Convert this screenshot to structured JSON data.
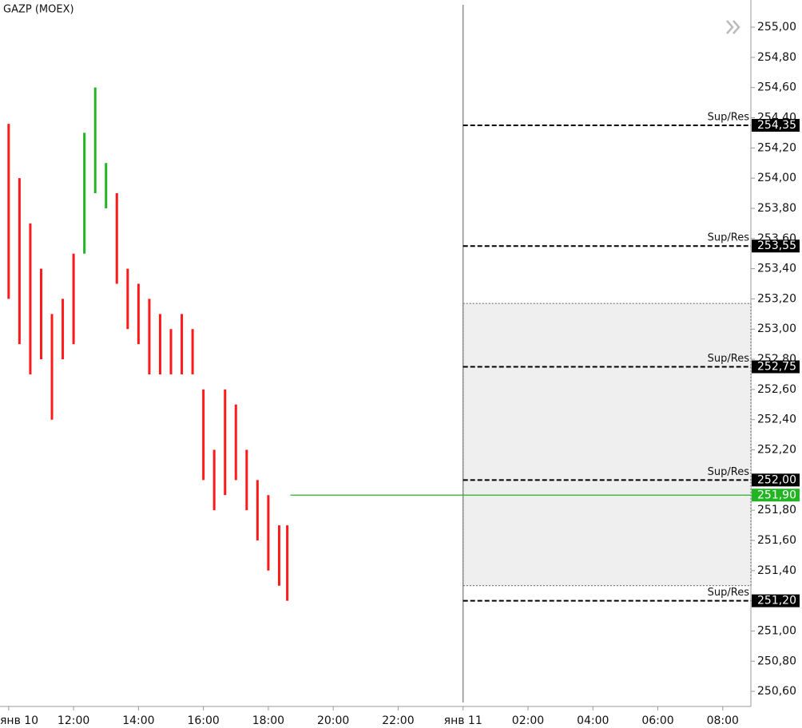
{
  "chart_data": {
    "type": "range-bar",
    "title": "GAZP (MOEX)",
    "x": [
      600,
      620,
      640,
      660,
      680,
      700,
      720,
      740,
      760,
      780,
      800,
      820,
      840,
      860,
      880,
      900,
      920,
      940,
      960,
      980,
      1000,
      1020,
      1040,
      1060,
      1080,
      1100,
      1115
    ],
    "high": [
      254.36,
      254.0,
      253.7,
      253.4,
      253.1,
      253.2,
      253.5,
      254.3,
      254.6,
      254.1,
      253.9,
      253.4,
      253.3,
      253.2,
      253.1,
      253.0,
      253.1,
      253.0,
      252.6,
      252.2,
      252.6,
      252.5,
      252.2,
      252.0,
      251.9,
      251.7,
      251.7
    ],
    "low": [
      253.2,
      252.9,
      252.7,
      252.8,
      252.4,
      252.8,
      252.9,
      253.5,
      253.9,
      253.8,
      253.3,
      253.0,
      252.9,
      252.7,
      252.7,
      252.7,
      252.7,
      252.7,
      252.0,
      251.8,
      251.9,
      252.0,
      251.8,
      251.6,
      251.4,
      251.3,
      251.2
    ],
    "colors": [
      "#ff1a1a",
      "#ff1a1a",
      "#ff1a1a",
      "#ff1a1a",
      "#ff1a1a",
      "#ff1a1a",
      "#ff1a1a",
      "#22b422",
      "#22b422",
      "#22b422",
      "#ff1a1a",
      "#ff1a1a",
      "#ff1a1a",
      "#ff1a1a",
      "#ff1a1a",
      "#ff1a1a",
      "#ff1a1a",
      "#ff1a1a",
      "#ff1a1a",
      "#ff1a1a",
      "#ff1a1a",
      "#ff1a1a",
      "#ff1a1a",
      "#ff1a1a",
      "#ff1a1a",
      "#ff1a1a",
      "#ff1a1a"
    ],
    "last_price": {
      "value": 251.9,
      "label": "251,90",
      "color": "#22b422"
    },
    "separator": 1440,
    "zone": [
      251.3,
      253.17
    ],
    "levels": [
      {
        "name": "Sup/Res",
        "value": 254.35,
        "label": "254,35"
      },
      {
        "name": "Sup/Res",
        "value": 253.55,
        "label": "253,55"
      },
      {
        "name": "Sup/Res",
        "value": 252.75,
        "label": "252,75"
      },
      {
        "name": "Sup/Res",
        "value": 252.0,
        "label": "252,00"
      },
      {
        "name": "Sup/Res",
        "value": 251.2,
        "label": "251,20"
      }
    ],
    "xlim": [
      584,
      1972
    ],
    "ylim": [
      250.5,
      255.18
    ],
    "xticks": [
      {
        "value": 600,
        "label": "янв 10"
      },
      {
        "value": 720,
        "label": "12:00"
      },
      {
        "value": 840,
        "label": "14:00"
      },
      {
        "value": 960,
        "label": "16:00"
      },
      {
        "value": 1080,
        "label": "18:00"
      },
      {
        "value": 1200,
        "label": "20:00"
      },
      {
        "value": 1320,
        "label": "22:00"
      },
      {
        "value": 1440,
        "label": "янв 11"
      },
      {
        "value": 1560,
        "label": "02:00"
      },
      {
        "value": 1680,
        "label": "04:00"
      },
      {
        "value": 1800,
        "label": "06:00"
      },
      {
        "value": 1920,
        "label": "08:00"
      }
    ],
    "yticks": [
      {
        "value": 250.6,
        "label": "250,60"
      },
      {
        "value": 250.8,
        "label": "250,80"
      },
      {
        "value": 251.0,
        "label": "251,00"
      },
      {
        "value": 251.2,
        "label": "251,20"
      },
      {
        "value": 251.4,
        "label": "251,40"
      },
      {
        "value": 251.6,
        "label": "251,60"
      },
      {
        "value": 251.8,
        "label": "251,80"
      },
      {
        "value": 252.0,
        "label": "252,00"
      },
      {
        "value": 252.2,
        "label": "252,20"
      },
      {
        "value": 252.4,
        "label": "252,40"
      },
      {
        "value": 252.6,
        "label": "252,60"
      },
      {
        "value": 252.8,
        "label": "252,80"
      },
      {
        "value": 253.0,
        "label": "253,00"
      },
      {
        "value": 253.2,
        "label": "253,20"
      },
      {
        "value": 253.4,
        "label": "253,40"
      },
      {
        "value": 253.6,
        "label": "253,60"
      },
      {
        "value": 253.8,
        "label": "253,80"
      },
      {
        "value": 254.0,
        "label": "254,00"
      },
      {
        "value": 254.2,
        "label": "254,20"
      },
      {
        "value": 254.4,
        "label": "254,40"
      },
      {
        "value": 254.6,
        "label": "254,60"
      },
      {
        "value": 254.8,
        "label": "254,80"
      },
      {
        "value": 255.0,
        "label": "255,00"
      }
    ]
  }
}
